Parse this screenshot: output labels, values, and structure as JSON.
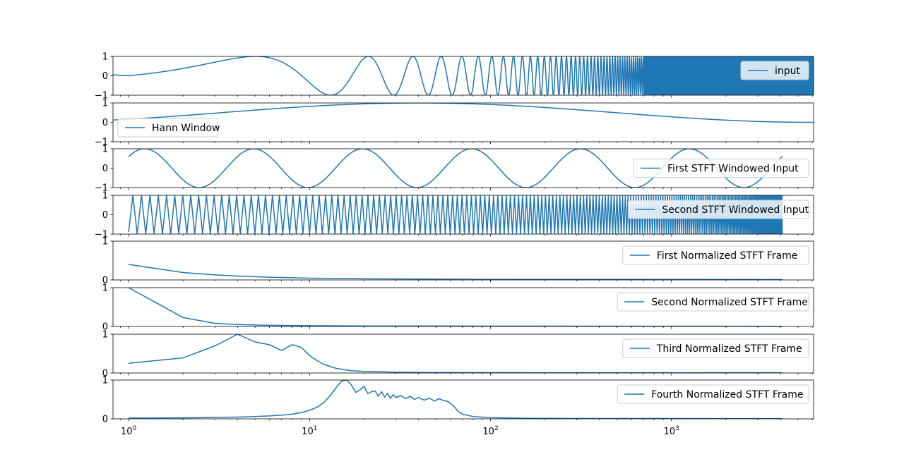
{
  "figure": {
    "background": "#ffffff",
    "line_color": "#1f77b4",
    "axis_color": "#000000",
    "legend_edge": "#cccccc"
  },
  "chart_data": [
    {
      "type": "line",
      "x_scale": "log",
      "y_ticks": [
        "1",
        "0",
        "−1"
      ],
      "ylim": [
        -1,
        1
      ],
      "legend_position": "upper right",
      "series": [
        {
          "name": "input",
          "signal": "chirp",
          "start": 1,
          "end": 6000,
          "fill_from": 2000
        }
      ]
    },
    {
      "type": "line",
      "x_scale": "log",
      "y_ticks": [
        "1",
        "0",
        "−1"
      ],
      "ylim": [
        -1,
        1
      ],
      "legend_position": "lower left",
      "series": [
        {
          "name": "Hann Window",
          "signal": "hann",
          "start": 1,
          "end": 6000,
          "peak_at": 40
        }
      ]
    },
    {
      "type": "line",
      "x_scale": "log",
      "y_ticks": [
        "1",
        "0",
        "−1"
      ],
      "ylim": [
        -1,
        1
      ],
      "legend_position": "right",
      "series": [
        {
          "name": "First STFT Windowed Input",
          "signal": "chirp",
          "start": 1,
          "end": 4096,
          "first_value": 0.6,
          "peaks": 6
        }
      ]
    },
    {
      "type": "line",
      "x_scale": "log",
      "y_ticks": [
        "1",
        "0",
        "−1"
      ],
      "ylim": [
        -1,
        1
      ],
      "legend_position": "upper right",
      "series": [
        {
          "name": "Second STFT Windowed Input",
          "signal": "dense-oscillation",
          "start": 1,
          "end": 4096,
          "first_value": -0.9
        }
      ]
    },
    {
      "type": "line",
      "x_scale": "log",
      "y_ticks": [
        "1",
        "0"
      ],
      "ylim": [
        0,
        1
      ],
      "legend_position": "upper right",
      "series": [
        {
          "name": "First Normalized STFT Frame",
          "x": [
            1,
            2,
            3,
            4,
            6,
            10,
            20,
            50,
            100,
            4096
          ],
          "y": [
            0.4,
            0.19,
            0.13,
            0.1,
            0.07,
            0.045,
            0.03,
            0.02,
            0.015,
            0.01
          ]
        }
      ]
    },
    {
      "type": "line",
      "x_scale": "log",
      "y_ticks": [
        "1",
        "0"
      ],
      "ylim": [
        0,
        1
      ],
      "legend_position": "upper right",
      "series": [
        {
          "name": "Second Normalized STFT Frame",
          "x": [
            1,
            2,
            3,
            4,
            6,
            10,
            20,
            100,
            4096
          ],
          "y": [
            1,
            0.23,
            0.08,
            0.05,
            0.03,
            0.02,
            0.012,
            0.01,
            0.005
          ]
        }
      ]
    },
    {
      "type": "line",
      "x_scale": "log",
      "y_ticks": [
        "1",
        "0"
      ],
      "ylim": [
        0,
        1
      ],
      "legend_position": "upper right",
      "series": [
        {
          "name": "Third Normalized STFT Frame",
          "x": [
            1,
            2,
            3,
            4,
            5,
            6,
            7,
            8,
            9,
            10,
            11,
            12,
            14,
            17,
            20,
            30,
            50,
            100,
            4096
          ],
          "y": [
            0.25,
            0.39,
            0.7,
            1.0,
            0.8,
            0.73,
            0.58,
            0.73,
            0.66,
            0.45,
            0.32,
            0.22,
            0.12,
            0.06,
            0.04,
            0.02,
            0.012,
            0.008,
            0.005
          ]
        }
      ]
    },
    {
      "type": "line",
      "x_scale": "log",
      "y_ticks": [
        "1",
        "0"
      ],
      "ylim": [
        0,
        1
      ],
      "legend_position": "upper right",
      "series": [
        {
          "name": "Fourth Normalized STFT Frame",
          "x": [
            1,
            2,
            3,
            4,
            5,
            6,
            7,
            8,
            9,
            10,
            11,
            12,
            13,
            14,
            15,
            16,
            17,
            18,
            19,
            20,
            21,
            22,
            23,
            24,
            25,
            26,
            27,
            28,
            29,
            30,
            32,
            34,
            36,
            38,
            40,
            43,
            46,
            49,
            52,
            55,
            58,
            62,
            66,
            70,
            80,
            100,
            150,
            300,
            1000,
            4096
          ],
          "y": [
            0.02,
            0.025,
            0.035,
            0.045,
            0.06,
            0.075,
            0.095,
            0.12,
            0.16,
            0.22,
            0.3,
            0.42,
            0.6,
            0.8,
            0.97,
            1.0,
            0.88,
            0.68,
            0.75,
            0.84,
            0.65,
            0.7,
            0.72,
            0.58,
            0.7,
            0.56,
            0.66,
            0.53,
            0.62,
            0.55,
            0.6,
            0.52,
            0.58,
            0.5,
            0.55,
            0.48,
            0.53,
            0.46,
            0.52,
            0.47,
            0.45,
            0.35,
            0.2,
            0.12,
            0.06,
            0.03,
            0.015,
            0.01,
            0.008,
            0.006
          ]
        }
      ]
    }
  ],
  "shared_x_axis": {
    "scale": "log",
    "ticks": [
      {
        "value": 1,
        "base": "10",
        "exp": "0"
      },
      {
        "value": 10,
        "base": "10",
        "exp": "1"
      },
      {
        "value": 100,
        "base": "10",
        "exp": "2"
      },
      {
        "value": 1000,
        "base": "10",
        "exp": "3"
      }
    ],
    "xlim": [
      0.82,
      6100
    ]
  }
}
